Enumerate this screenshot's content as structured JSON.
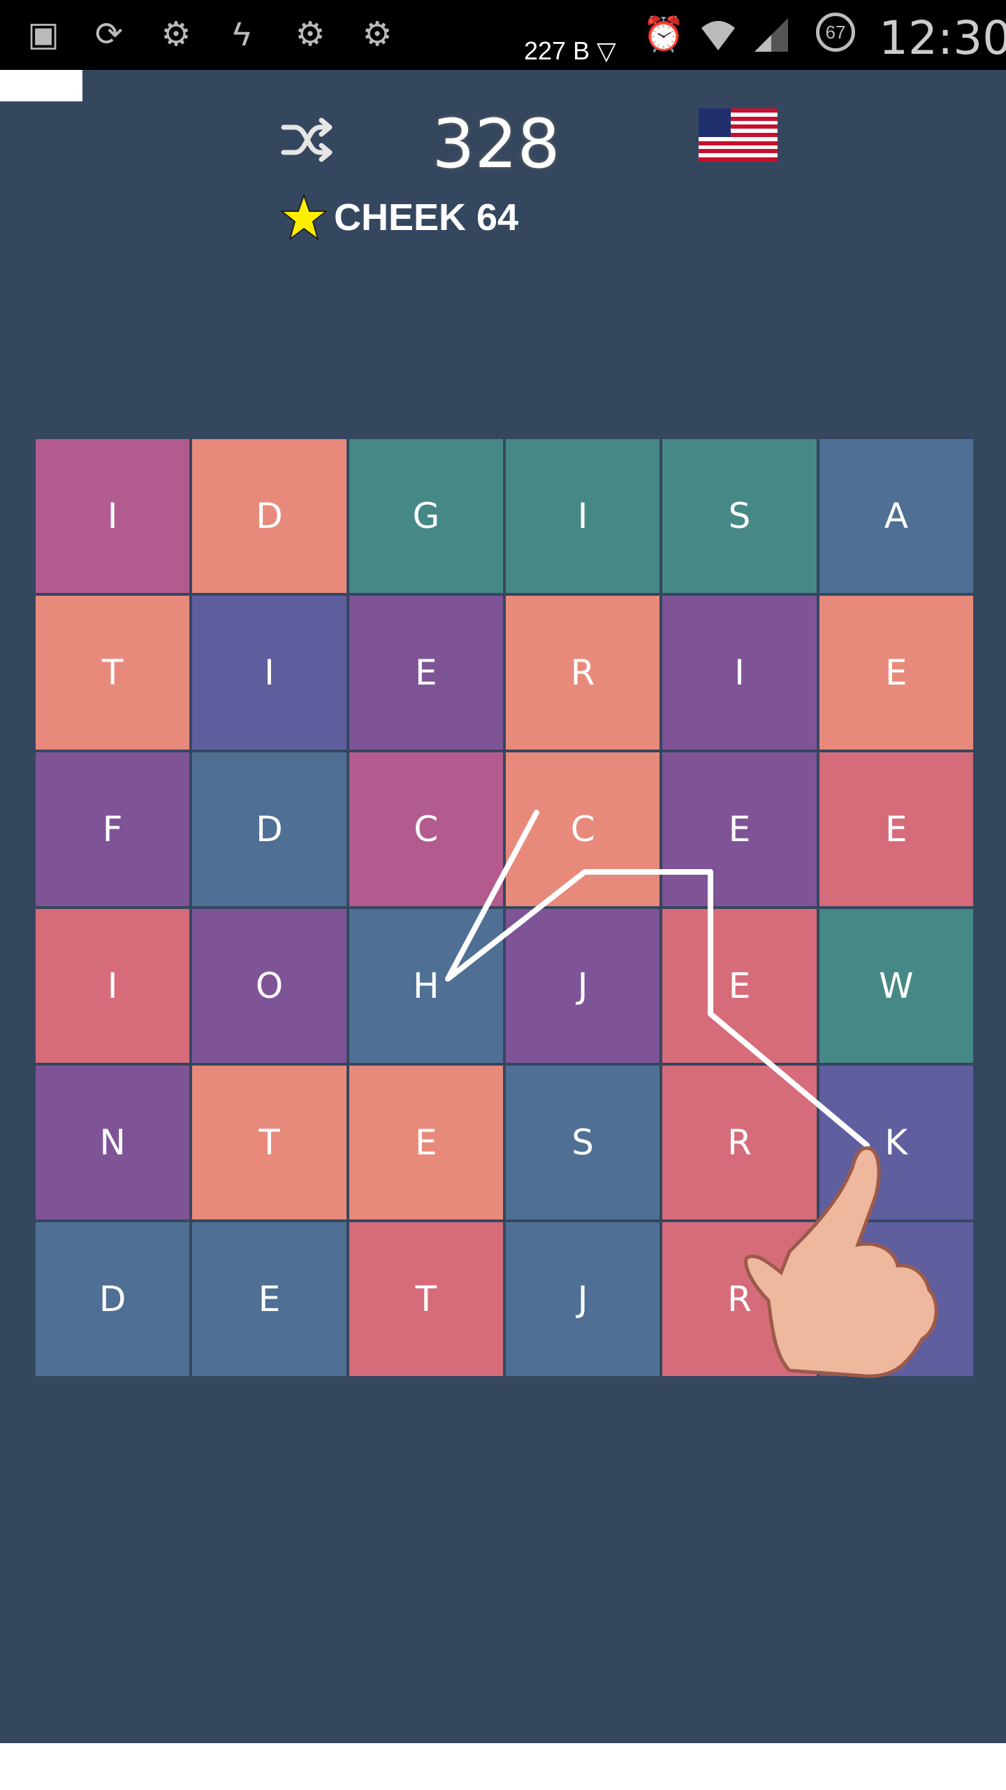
{
  "status_bar": {
    "net_speed": "227 B ▽",
    "battery": "67",
    "time": "12:30",
    "icons": [
      "gallery-icon",
      "sync-icon",
      "gear-icon",
      "flash-icon",
      "gear-icon",
      "gear-icon",
      "alarm-icon",
      "wifi-icon",
      "signal-icon",
      "battery-icon"
    ]
  },
  "header": {
    "score": "328",
    "best_word": "CHEEK 64",
    "language": "US flag"
  },
  "colors": {
    "background": "#34475f",
    "magenta": "#b35b8e",
    "salmon": "#e88a7b",
    "teal": "#468886",
    "slate": "#4f7094",
    "indigo": "#5f5e9e",
    "purple": "#7e5497",
    "rose": "#d66c7a"
  },
  "board": {
    "rows": [
      [
        {
          "l": "I",
          "c": "magenta"
        },
        {
          "l": "D",
          "c": "salmon"
        },
        {
          "l": "G",
          "c": "teal"
        },
        {
          "l": "I",
          "c": "teal"
        },
        {
          "l": "S",
          "c": "teal"
        },
        {
          "l": "A",
          "c": "slate"
        }
      ],
      [
        {
          "l": "T",
          "c": "salmon"
        },
        {
          "l": "I",
          "c": "indigo"
        },
        {
          "l": "E",
          "c": "purple"
        },
        {
          "l": "R",
          "c": "salmon"
        },
        {
          "l": "I",
          "c": "purple"
        },
        {
          "l": "E",
          "c": "salmon"
        }
      ],
      [
        {
          "l": "F",
          "c": "purple"
        },
        {
          "l": "D",
          "c": "slate"
        },
        {
          "l": "C",
          "c": "magenta"
        },
        {
          "l": "C",
          "c": "salmon"
        },
        {
          "l": "E",
          "c": "purple"
        },
        {
          "l": "E",
          "c": "rose"
        }
      ],
      [
        {
          "l": "I",
          "c": "rose"
        },
        {
          "l": "O",
          "c": "purple"
        },
        {
          "l": "H",
          "c": "slate"
        },
        {
          "l": "J",
          "c": "purple"
        },
        {
          "l": "E",
          "c": "rose"
        },
        {
          "l": "W",
          "c": "teal"
        }
      ],
      [
        {
          "l": "N",
          "c": "purple"
        },
        {
          "l": "T",
          "c": "salmon"
        },
        {
          "l": "E",
          "c": "salmon"
        },
        {
          "l": "S",
          "c": "slate"
        },
        {
          "l": "R",
          "c": "rose"
        },
        {
          "l": "K",
          "c": "indigo"
        }
      ],
      [
        {
          "l": "D",
          "c": "slate"
        },
        {
          "l": "E",
          "c": "slate"
        },
        {
          "l": "T",
          "c": "rose"
        },
        {
          "l": "J",
          "c": "slate"
        },
        {
          "l": "R",
          "c": "rose"
        },
        {
          "l": "",
          "c": "indigo"
        }
      ]
    ]
  }
}
